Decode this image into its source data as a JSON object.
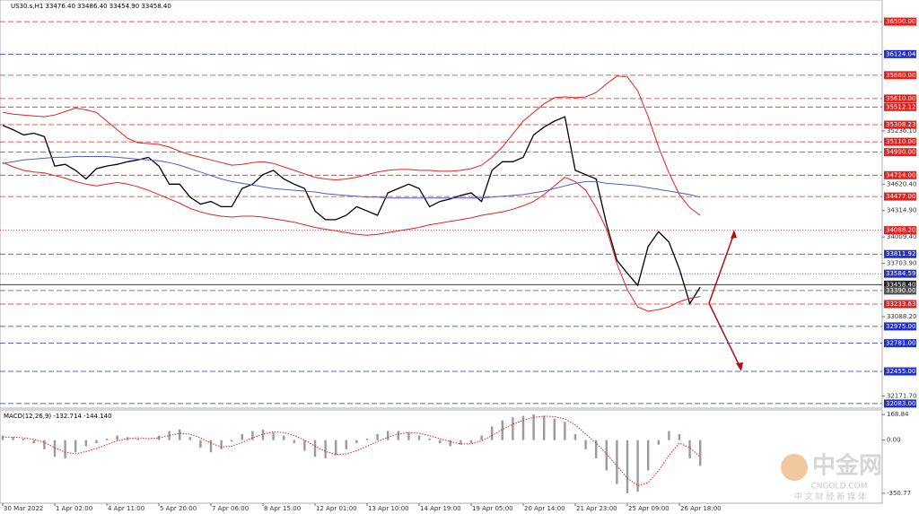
{
  "chart_data": [
    {
      "type": "line",
      "title": "US30.s,H1  33476.40 33486.40 33454.90 33458.40",
      "categories": [
        "30 Mar 2022",
        null,
        null,
        null,
        null,
        "1 Apr 02:00",
        null,
        null,
        null,
        null,
        "4 Apr 11:00",
        null,
        null,
        null,
        null,
        "5 Apr 20:00",
        null,
        null,
        null,
        null,
        "7 Apr 06:00",
        null,
        null,
        null,
        null,
        "8 Apr 15:00",
        null,
        null,
        null,
        null,
        "12 Apr 01:00",
        null,
        null,
        null,
        null,
        "13 Apr 10:00",
        null,
        null,
        null,
        null,
        "14 Apr 19:00",
        null,
        null,
        null,
        null,
        "19 Apr 05:00",
        null,
        null,
        null,
        null,
        "20 Apr 14:00",
        null,
        null,
        null,
        null,
        "21 Apr 23:00",
        null,
        null,
        null,
        null,
        "25 Apr 09:00",
        null,
        null,
        null,
        null,
        "26 Apr 18:00",
        null,
        null
      ],
      "series": [
        {
          "color": "#000000",
          "values": [
            35300,
            35250,
            35190,
            35210,
            35170,
            34830,
            34850,
            34780,
            34680,
            34800,
            34830,
            34850,
            34880,
            34900,
            34930,
            34830,
            34620,
            34620,
            34470,
            34390,
            34420,
            34360,
            34360,
            34570,
            34620,
            34730,
            34780,
            34680,
            34620,
            34570,
            34310,
            34210,
            34210,
            34260,
            34360,
            34310,
            34260,
            34520,
            34570,
            34620,
            34570,
            34360,
            34420,
            34450,
            34490,
            34520,
            34420,
            34780,
            34880,
            34880,
            34930,
            35190,
            35280,
            35350,
            35400,
            34780,
            34730,
            34680,
            34160,
            33740,
            33590,
            33450,
            33900,
            34070,
            33950,
            33640,
            33240,
            33430
          ]
        },
        {
          "color": "#e8201c",
          "values": [
            35450,
            35430,
            35420,
            35410,
            35400,
            35420,
            35460,
            35500,
            35480,
            35450,
            35350,
            35250,
            35150,
            35100,
            35090,
            35080,
            35050,
            35000,
            34960,
            34930,
            34900,
            34870,
            34840,
            34850,
            34870,
            34880,
            34860,
            34820,
            34780,
            34740,
            34700,
            34680,
            34670,
            34680,
            34700,
            34730,
            34760,
            34780,
            34790,
            34790,
            34780,
            34780,
            34770,
            34770,
            34780,
            34800,
            34840,
            34930,
            35050,
            35200,
            35350,
            35450,
            35550,
            35620,
            35630,
            35620,
            35630,
            35680,
            35780,
            35870,
            35860,
            35700,
            35400,
            35050,
            34750,
            34500,
            34350,
            34260
          ]
        },
        {
          "color": "#e8201c",
          "values": [
            34870,
            34820,
            34780,
            34760,
            34750,
            34720,
            34690,
            34650,
            34620,
            34600,
            34620,
            34640,
            34620,
            34590,
            34550,
            34500,
            34450,
            34400,
            34340,
            34300,
            34270,
            34250,
            34240,
            34250,
            34250,
            34240,
            34220,
            34200,
            34180,
            34150,
            34120,
            34100,
            34080,
            34060,
            34040,
            34030,
            34040,
            34060,
            34080,
            34100,
            34120,
            34150,
            34170,
            34190,
            34210,
            34230,
            34260,
            34280,
            34300,
            34330,
            34370,
            34420,
            34500,
            34600,
            34700,
            34650,
            34550,
            34350,
            34100,
            33700,
            33400,
            33200,
            33150,
            33170,
            33200,
            33260,
            33300,
            33320
          ]
        },
        {
          "color": "#4a5fd0",
          "values": [
            34860,
            34880,
            34900,
            34910,
            34920,
            34930,
            34930,
            34940,
            34940,
            34940,
            34940,
            34930,
            34920,
            34910,
            34900,
            34890,
            34870,
            34840,
            34800,
            34760,
            34720,
            34680,
            34650,
            34630,
            34610,
            34590,
            34570,
            34560,
            34550,
            34540,
            34530,
            34510,
            34500,
            34490,
            34480,
            34470,
            34470,
            34460,
            34460,
            34460,
            34460,
            34460,
            34460,
            34460,
            34460,
            34460,
            34460,
            34470,
            34480,
            34490,
            34500,
            34520,
            34540,
            34570,
            34600,
            34630,
            34650,
            34650,
            34630,
            34620,
            34610,
            34600,
            34580,
            34560,
            34540,
            34520,
            34500,
            34470
          ]
        }
      ],
      "ylim": [
        32030,
        36750
      ],
      "yticks": [
        {
          "value": 35236.1,
          "label": "35236.10"
        },
        {
          "value": 34620.4,
          "label": "34620.40"
        },
        {
          "value": 34314.9,
          "label": "34314.90"
        },
        {
          "value": 34009.4,
          "label": "34009.40"
        },
        {
          "value": 33703.9,
          "label": "33703.90"
        },
        {
          "value": 33088.2,
          "label": "33088.20"
        },
        {
          "value": 32171.7,
          "label": "32171.70"
        }
      ],
      "levels": [
        {
          "value": 36500,
          "label": "36500.00",
          "color": "#e8201c",
          "style": "dashed"
        },
        {
          "value": 36124.04,
          "label": "36124.04",
          "color": "#2030c8",
          "style": "dashed"
        },
        {
          "value": 35880,
          "label": "35880.00",
          "color": "#e8201c",
          "style": "dashed"
        },
        {
          "value": 35610,
          "label": "35610.00",
          "color": "#e8201c",
          "style": "dashed"
        },
        {
          "value": 35512.12,
          "label": "35512.12",
          "color": "#e8201c",
          "style": "dashed"
        },
        {
          "value": 35308.23,
          "label": "35308.23",
          "color": "#e8201c",
          "style": "dashed"
        },
        {
          "value": 35110,
          "label": "35110.00",
          "color": "#e8201c",
          "style": "dashed"
        },
        {
          "value": 34990,
          "label": "34990.00",
          "color": "#e8201c",
          "style": "dashed"
        },
        {
          "value": 34724,
          "label": "34724.00",
          "color": "#e8201c",
          "style": "dashed"
        },
        {
          "value": 34477,
          "label": "34477.00",
          "color": "#e8201c",
          "style": "dashed"
        },
        {
          "value": 34088.2,
          "label": "34088.20",
          "color": "#e8201c",
          "style": "dotted"
        },
        {
          "value": 33811.92,
          "label": "33811.92",
          "color": "#2030c8",
          "style": "dashed"
        },
        {
          "value": 33584.59,
          "label": "33584.59",
          "color": "#2030c8",
          "style": "dotted"
        },
        {
          "value": 33458.4,
          "label": "33458.40",
          "color": "#222222",
          "style": "solid"
        },
        {
          "value": 33390,
          "label": "33390.00",
          "color": "#555555",
          "style": "dashed"
        },
        {
          "value": 33233.63,
          "label": "33233.63",
          "color": "#e8201c",
          "style": "dashed"
        },
        {
          "value": 32975,
          "label": "32975.00",
          "color": "#2030c8",
          "style": "dashed"
        },
        {
          "value": 32781,
          "label": "32781.00",
          "color": "#2030c8",
          "style": "dashed"
        },
        {
          "value": 32455,
          "label": "32455.00",
          "color": "#2030c8",
          "style": "dashed"
        },
        {
          "value": 32083,
          "label": "32083.00",
          "color": "#2030c8",
          "style": "dashed"
        }
      ]
    },
    {
      "type": "bar",
      "title": "MACD(12,26,9) -132.714 -144.140",
      "series": [
        {
          "type": "bar",
          "color": "#9a9a9a",
          "values": [
            30,
            20,
            10,
            -20,
            -60,
            -110,
            -120,
            -80,
            -40,
            -20,
            10,
            30,
            20,
            10,
            0,
            30,
            60,
            70,
            20,
            -50,
            -80,
            -60,
            -10,
            40,
            60,
            70,
            50,
            30,
            -20,
            -70,
            -110,
            -120,
            -100,
            -60,
            -20,
            10,
            40,
            60,
            60,
            50,
            30,
            10,
            -20,
            -40,
            -30,
            -20,
            30,
            90,
            130,
            150,
            160,
            170,
            160,
            140,
            120,
            40,
            -60,
            -120,
            -200,
            -290,
            -350,
            -340,
            -200,
            -30,
            60,
            40,
            -120,
            -170
          ]
        },
        {
          "type": "line",
          "color": "#e8201c",
          "values": [
            20,
            20,
            15,
            5,
            -15,
            -50,
            -80,
            -90,
            -75,
            -55,
            -30,
            -5,
            10,
            15,
            10,
            15,
            30,
            45,
            40,
            15,
            -20,
            -45,
            -40,
            -15,
            15,
            40,
            55,
            50,
            30,
            0,
            -40,
            -75,
            -95,
            -90,
            -70,
            -40,
            -10,
            20,
            40,
            50,
            45,
            30,
            10,
            -10,
            -25,
            -25,
            -5,
            30,
            70,
            105,
            130,
            150,
            158,
            155,
            140,
            100,
            40,
            -20,
            -90,
            -170,
            -250,
            -300,
            -280,
            -200,
            -100,
            -20,
            -50,
            -110
          ]
        }
      ],
      "ylim": [
        -416,
        199
      ],
      "yticks": [
        {
          "value": 168.84,
          "label": "168.84"
        },
        {
          "value": 0,
          "label": "0.00"
        },
        {
          "value": -350.77,
          "label": "-350.77"
        }
      ]
    }
  ],
  "watermark": {
    "logo": "中金网",
    "site": "CNGOLD.COM",
    "slogan": "中 文 财 经 新 媒 体"
  }
}
